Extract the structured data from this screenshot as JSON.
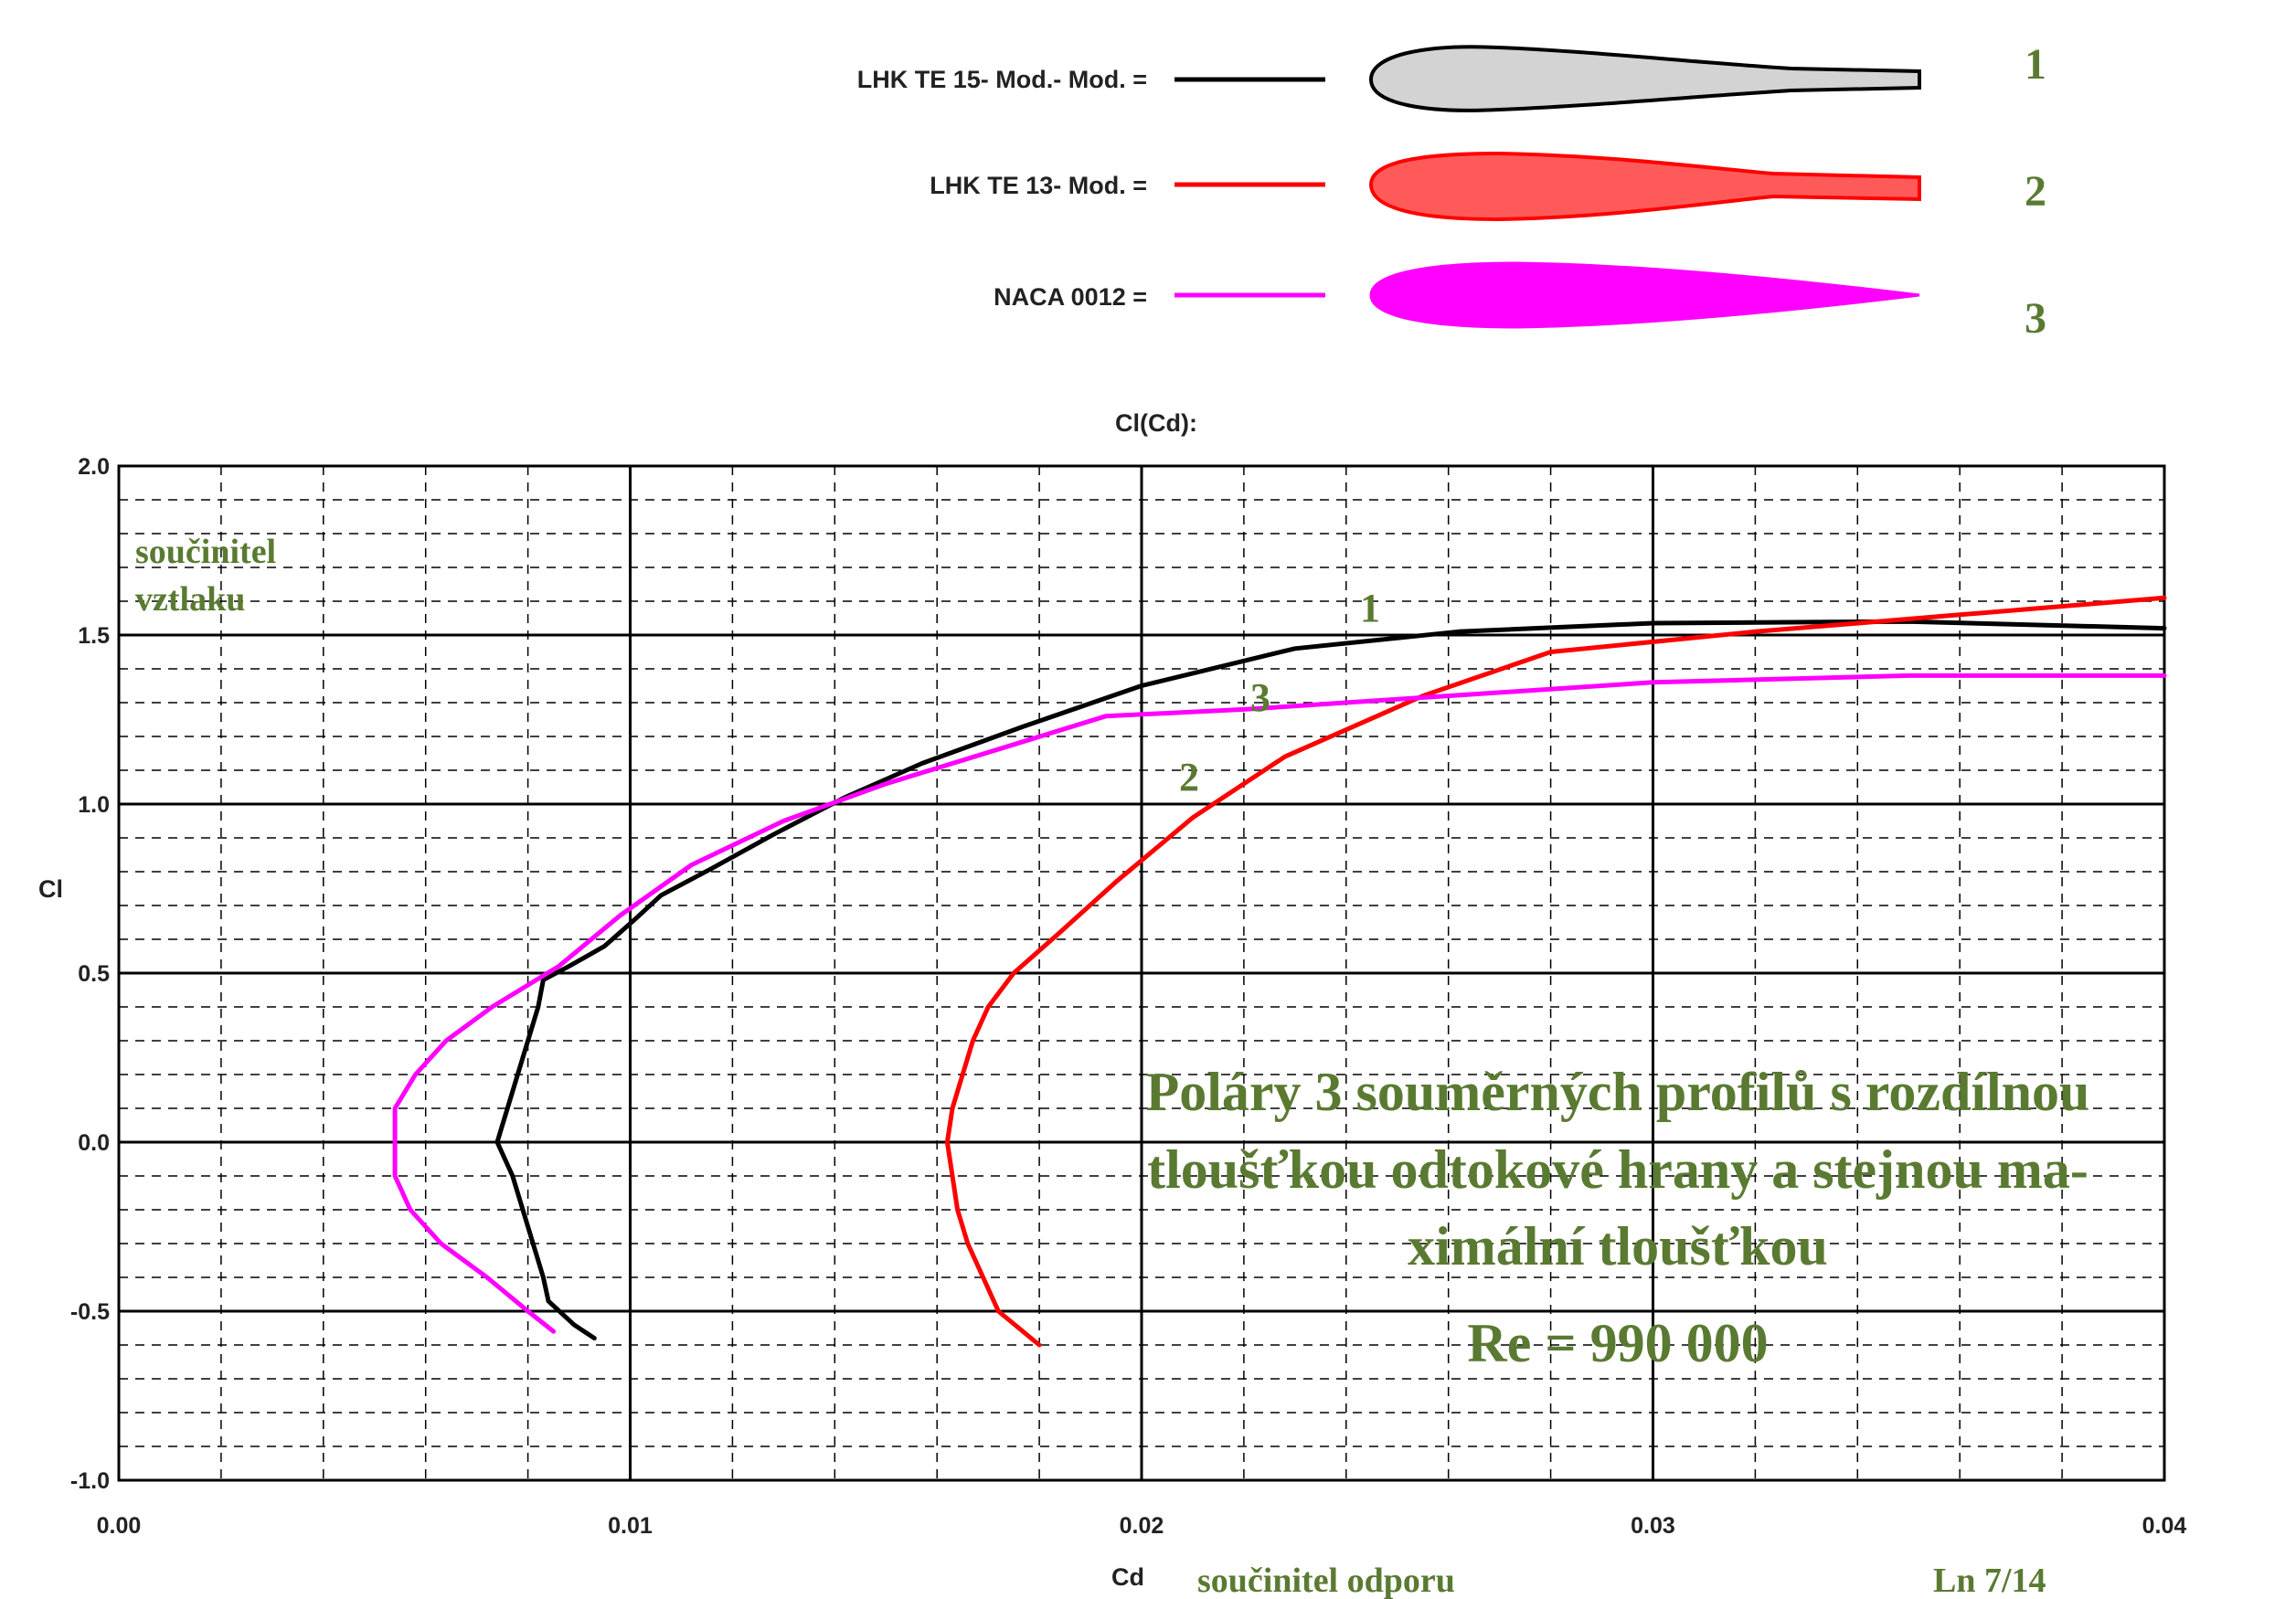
{
  "chart_data": {
    "type": "line",
    "title": "Cl(Cd):",
    "xlabel": "Cd",
    "ylabel": "Cl",
    "xlabel_note": "součinitel odporu",
    "ylabel_note_lines": [
      "součinitel",
      "vztlaku"
    ],
    "page_number": "Ln 7/14",
    "xlim": [
      0.0,
      0.04
    ],
    "ylim": [
      -1.0,
      2.0
    ],
    "xticks": [
      "0.00",
      "0.01",
      "0.02",
      "0.03",
      "0.04"
    ],
    "yticks": [
      "2.0",
      "1.5",
      "1.0",
      "0.5",
      "0.0",
      "-0.5",
      "-1.0"
    ],
    "grid": true,
    "legend_position": "top",
    "annotation_lines": [
      "Poláry 3 souměrných profilů s rozdílnou",
      "tloušťkou odtokové hrany a stejnou ma-",
      "ximální tloušťkou"
    ],
    "reynolds": "Re = 990 000",
    "series": [
      {
        "name": "LHK TE 15- Mod.- Mod. =",
        "number": "1",
        "color": "#000000",
        "profile_fill": "#d3d3d3",
        "points": [
          [
            0.0093,
            -0.58
          ],
          [
            0.0089,
            -0.54
          ],
          [
            0.0084,
            -0.47
          ],
          [
            0.0083,
            -0.4
          ],
          [
            0.0081,
            -0.3
          ],
          [
            0.0079,
            -0.2
          ],
          [
            0.0077,
            -0.1
          ],
          [
            0.0074,
            0.0
          ],
          [
            0.0076,
            0.1
          ],
          [
            0.0078,
            0.2
          ],
          [
            0.008,
            0.3
          ],
          [
            0.0082,
            0.4
          ],
          [
            0.0083,
            0.48
          ],
          [
            0.0088,
            0.52
          ],
          [
            0.0095,
            0.58
          ],
          [
            0.0101,
            0.66
          ],
          [
            0.0106,
            0.73
          ],
          [
            0.0116,
            0.81
          ],
          [
            0.0128,
            0.91
          ],
          [
            0.0142,
            1.02
          ],
          [
            0.0157,
            1.12
          ],
          [
            0.0177,
            1.23
          ],
          [
            0.02,
            1.35
          ],
          [
            0.023,
            1.46
          ],
          [
            0.0262,
            1.51
          ],
          [
            0.03,
            1.535
          ],
          [
            0.035,
            1.54
          ],
          [
            0.04,
            1.52
          ]
        ]
      },
      {
        "name": "LHK TE 13- Mod. =",
        "number": "2",
        "color": "#ff0000",
        "profile_fill": "#ff5a5a",
        "points": [
          [
            0.018,
            -0.6
          ],
          [
            0.0172,
            -0.5
          ],
          [
            0.0169,
            -0.4
          ],
          [
            0.0166,
            -0.3
          ],
          [
            0.0164,
            -0.2
          ],
          [
            0.0163,
            -0.1
          ],
          [
            0.0162,
            0.0
          ],
          [
            0.0163,
            0.1
          ],
          [
            0.0165,
            0.2
          ],
          [
            0.0167,
            0.3
          ],
          [
            0.017,
            0.4
          ],
          [
            0.0175,
            0.5
          ],
          [
            0.0184,
            0.62
          ],
          [
            0.0195,
            0.77
          ],
          [
            0.021,
            0.96
          ],
          [
            0.0228,
            1.14
          ],
          [
            0.0255,
            1.32
          ],
          [
            0.028,
            1.45
          ],
          [
            0.032,
            1.51
          ],
          [
            0.036,
            1.56
          ],
          [
            0.04,
            1.61
          ]
        ]
      },
      {
        "name": "NACA 0012 =",
        "number": "3",
        "color": "#ff00ff",
        "profile_fill": "#ff00ff",
        "points": [
          [
            0.0085,
            -0.56
          ],
          [
            0.008,
            -0.5
          ],
          [
            0.0072,
            -0.4
          ],
          [
            0.0063,
            -0.3
          ],
          [
            0.0057,
            -0.2
          ],
          [
            0.0054,
            -0.1
          ],
          [
            0.0054,
            0.0
          ],
          [
            0.0054,
            0.1
          ],
          [
            0.0058,
            0.2
          ],
          [
            0.0064,
            0.3
          ],
          [
            0.0073,
            0.4
          ],
          [
            0.0086,
            0.52
          ],
          [
            0.0098,
            0.67
          ],
          [
            0.0112,
            0.82
          ],
          [
            0.013,
            0.95
          ],
          [
            0.015,
            1.06
          ],
          [
            0.0178,
            1.19
          ],
          [
            0.0193,
            1.26
          ],
          [
            0.022,
            1.28
          ],
          [
            0.025,
            1.31
          ],
          [
            0.03,
            1.36
          ],
          [
            0.035,
            1.38
          ],
          [
            0.04,
            1.38
          ]
        ]
      }
    ]
  }
}
